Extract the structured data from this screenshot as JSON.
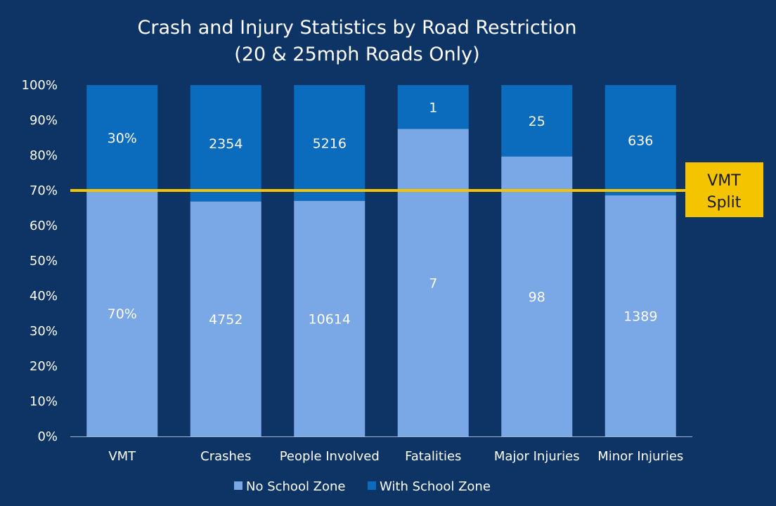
{
  "chart_data": {
    "type": "bar",
    "stacked": "percent",
    "title": "Crash and Injury Statistics by Road Restriction",
    "subtitle": "(20 & 25mph Roads Only)",
    "categories": [
      "VMT",
      "Crashes",
      "People Involved",
      "Fatalities",
      "Major Injuries",
      "Minor Injuries"
    ],
    "series": [
      {
        "name": "No School Zone",
        "color": "#7aa7e6",
        "values": [
          70,
          4752,
          10614,
          7,
          98,
          1389
        ],
        "labels": [
          "70%",
          "4752",
          "10614",
          "7",
          "98",
          "1389"
        ]
      },
      {
        "name": "With School Zone",
        "color": "#0b6bbd",
        "values": [
          30,
          2354,
          5216,
          1,
          25,
          636
        ],
        "labels": [
          "30%",
          "2354",
          "5216",
          "1",
          "25",
          "636"
        ]
      }
    ],
    "ylim": [
      0,
      100
    ],
    "yticks": [
      "0%",
      "10%",
      "20%",
      "30%",
      "40%",
      "50%",
      "60%",
      "70%",
      "80%",
      "90%",
      "100%"
    ],
    "reference_line": {
      "value": 70,
      "color": "#f5c400",
      "label_line1": "VMT",
      "label_line2": "Split"
    },
    "legend_position": "bottom",
    "grid": false
  },
  "colors": {
    "background": "#0e3466",
    "axis": "#9fb3cc"
  }
}
